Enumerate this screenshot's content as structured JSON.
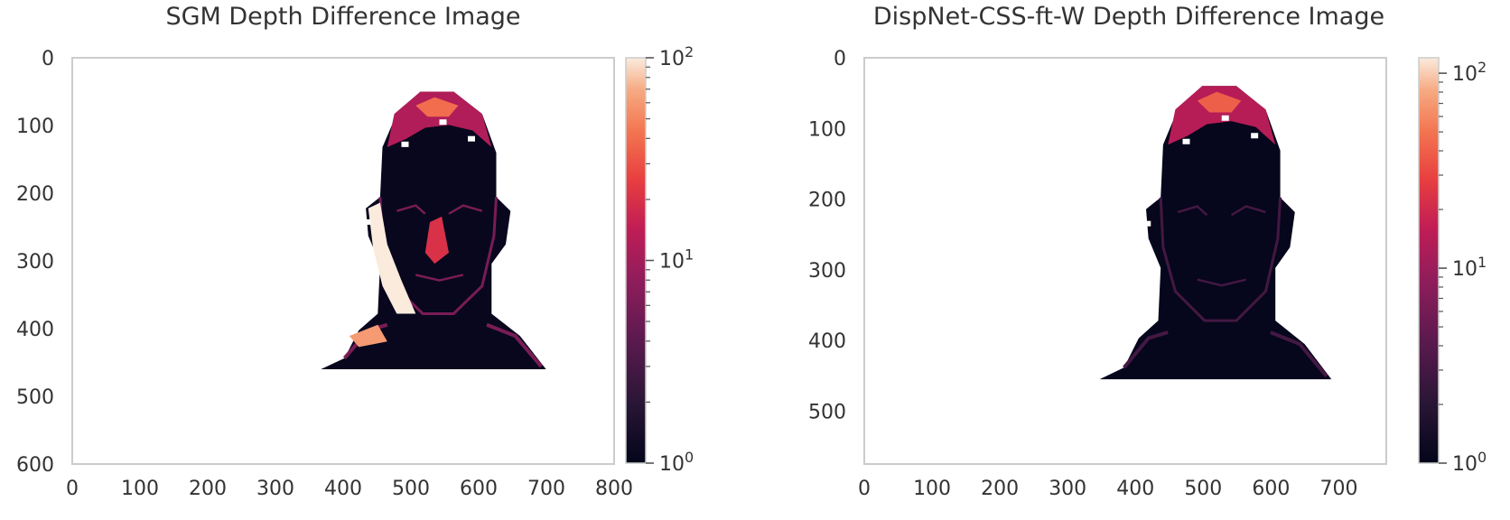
{
  "chart_data": [
    {
      "type": "heatmap",
      "title": "SGM Depth Difference Image",
      "xlabel": "",
      "ylabel": "",
      "x_ticks": [
        0,
        100,
        200,
        300,
        400,
        500,
        600,
        700,
        800
      ],
      "y_ticks": [
        0,
        100,
        200,
        300,
        400,
        500,
        600
      ],
      "xlim": [
        0,
        800
      ],
      "ylim": [
        600,
        0
      ],
      "colorbar": {
        "scale": "log",
        "range": [
          1,
          100
        ],
        "major_ticks": [
          1,
          10,
          100
        ],
        "major_tick_labels": [
          "10^0",
          "10^1",
          "10^2"
        ],
        "colormap": "rocket"
      },
      "grid": false,
      "content": "face region depth differences",
      "face_extent": {
        "x": [
          360,
          710
        ],
        "y": [
          50,
          460
        ]
      },
      "regions": [
        {
          "name": "face-background",
          "level": 1.1
        },
        {
          "name": "hair-band",
          "level": 12
        },
        {
          "name": "left-cheek-saturated",
          "level": 100
        },
        {
          "name": "edges",
          "level": 6
        },
        {
          "name": "nose-highlight",
          "level": 20
        }
      ]
    },
    {
      "type": "heatmap",
      "title": "DispNet-CSS-ft-W Depth Difference Image",
      "xlabel": "",
      "ylabel": "",
      "x_ticks": [
        0,
        100,
        200,
        300,
        400,
        500,
        600,
        700
      ],
      "y_ticks": [
        0,
        100,
        200,
        300,
        400,
        500
      ],
      "xlim": [
        0,
        770
      ],
      "ylim": [
        575,
        0
      ],
      "colorbar": {
        "scale": "log",
        "range": [
          1,
          120
        ],
        "major_ticks": [
          1,
          10,
          100
        ],
        "major_tick_labels": [
          "10^0",
          "10^1",
          "10^2"
        ],
        "colormap": "rocket"
      },
      "grid": false,
      "content": "face region depth differences",
      "face_extent": {
        "x": [
          340,
          700
        ],
        "y": [
          40,
          455
        ]
      },
      "regions": [
        {
          "name": "face-background",
          "level": 1.05
        },
        {
          "name": "hair-band",
          "level": 14
        },
        {
          "name": "edges",
          "level": 3
        }
      ]
    }
  ]
}
